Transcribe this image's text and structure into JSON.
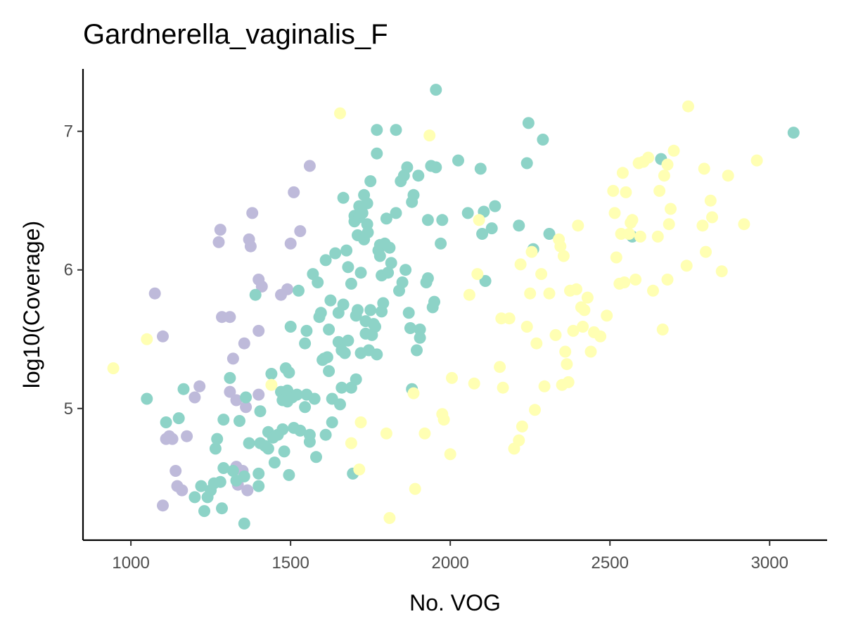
{
  "chart_data": {
    "type": "scatter",
    "title": "Gardnerella_vaginalis_F",
    "xlabel": "No. VOG",
    "ylabel": "log10(Coverage)",
    "xlim": [
      850,
      3180
    ],
    "ylim": [
      4.05,
      7.45
    ],
    "x_ticks": [
      1000,
      1500,
      2000,
      2500,
      3000
    ],
    "x_tick_labels": [
      "1000",
      "1500",
      "2000",
      "2500",
      "3000"
    ],
    "y_ticks": [
      5,
      6,
      7
    ],
    "y_tick_labels": [
      "5",
      "6",
      "7"
    ],
    "grid": false,
    "legend": "none",
    "series": [
      {
        "color": "#bebada",
        "points": [
          [
            1075,
            5.83
          ],
          [
            1100,
            5.52
          ],
          [
            1100,
            4.3
          ],
          [
            1110,
            4.78
          ],
          [
            1120,
            4.8
          ],
          [
            1130,
            4.78
          ],
          [
            1140,
            4.55
          ],
          [
            1145,
            4.44
          ],
          [
            1160,
            4.41
          ],
          [
            1175,
            4.8
          ],
          [
            1200,
            5.08
          ],
          [
            1215,
            5.16
          ],
          [
            1275,
            6.2
          ],
          [
            1280,
            6.29
          ],
          [
            1285,
            5.66
          ],
          [
            1310,
            5.66
          ],
          [
            1310,
            5.12
          ],
          [
            1320,
            5.36
          ],
          [
            1330,
            5.06
          ],
          [
            1330,
            4.58
          ],
          [
            1335,
            4.45
          ],
          [
            1350,
            4.55
          ],
          [
            1355,
            5.47
          ],
          [
            1360,
            5.01
          ],
          [
            1365,
            4.41
          ],
          [
            1370,
            6.22
          ],
          [
            1375,
            6.17
          ],
          [
            1380,
            6.41
          ],
          [
            1400,
            5.93
          ],
          [
            1400,
            5.56
          ],
          [
            1400,
            5.1
          ],
          [
            1410,
            5.88
          ],
          [
            1470,
            5.82
          ],
          [
            1490,
            5.86
          ],
          [
            1500,
            6.19
          ],
          [
            1510,
            6.56
          ],
          [
            1530,
            6.28
          ],
          [
            1560,
            6.75
          ]
        ]
      },
      {
        "color": "#8dd3c7",
        "points": [
          [
            1050,
            5.07
          ],
          [
            1110,
            4.9
          ],
          [
            1150,
            4.93
          ],
          [
            1165,
            5.14
          ],
          [
            1200,
            4.36
          ],
          [
            1220,
            4.44
          ],
          [
            1230,
            4.26
          ],
          [
            1240,
            4.36
          ],
          [
            1250,
            4.41
          ],
          [
            1260,
            4.46
          ],
          [
            1265,
            4.71
          ],
          [
            1270,
            4.78
          ],
          [
            1280,
            4.47
          ],
          [
            1285,
            4.28
          ],
          [
            1290,
            4.57
          ],
          [
            1290,
            4.92
          ],
          [
            1310,
            5.22
          ],
          [
            1320,
            4.55
          ],
          [
            1330,
            4.48
          ],
          [
            1340,
            4.91
          ],
          [
            1355,
            4.51
          ],
          [
            1355,
            4.17
          ],
          [
            1360,
            5.08
          ],
          [
            1370,
            4.75
          ],
          [
            1390,
            5.82
          ],
          [
            1400,
            4.44
          ],
          [
            1400,
            4.53
          ],
          [
            1405,
            4.75
          ],
          [
            1405,
            4.98
          ],
          [
            1420,
            4.73
          ],
          [
            1430,
            4.71
          ],
          [
            1430,
            4.83
          ],
          [
            1440,
            5.25
          ],
          [
            1445,
            4.79
          ],
          [
            1450,
            4.61
          ],
          [
            1460,
            4.81
          ],
          [
            1470,
            5.12
          ],
          [
            1475,
            5.06
          ],
          [
            1475,
            4.85
          ],
          [
            1480,
            4.69
          ],
          [
            1485,
            5.29
          ],
          [
            1490,
            5.05
          ],
          [
            1490,
            5.13
          ],
          [
            1495,
            5.26
          ],
          [
            1495,
            4.52
          ],
          [
            1500,
            5.59
          ],
          [
            1505,
            5.08
          ],
          [
            1510,
            4.86
          ],
          [
            1520,
            5.1
          ],
          [
            1525,
            5.85
          ],
          [
            1530,
            4.84
          ],
          [
            1545,
            5.01
          ],
          [
            1545,
            5.47
          ],
          [
            1550,
            5.56
          ],
          [
            1550,
            5.1
          ],
          [
            1560,
            4.76
          ],
          [
            1560,
            4.81
          ],
          [
            1570,
            5.97
          ],
          [
            1575,
            5.07
          ],
          [
            1580,
            4.65
          ],
          [
            1585,
            5.91
          ],
          [
            1590,
            5.66
          ],
          [
            1595,
            5.69
          ],
          [
            1600,
            5.35
          ],
          [
            1605,
            5.36
          ],
          [
            1610,
            4.81
          ],
          [
            1610,
            6.07
          ],
          [
            1615,
            5.37
          ],
          [
            1620,
            5.27
          ],
          [
            1620,
            5.57
          ],
          [
            1625,
            5.78
          ],
          [
            1630,
            4.9
          ],
          [
            1630,
            5.07
          ],
          [
            1640,
            6.12
          ],
          [
            1650,
            5.48
          ],
          [
            1650,
            5.69
          ],
          [
            1655,
            5.03
          ],
          [
            1660,
            5.15
          ],
          [
            1660,
            5.42
          ],
          [
            1665,
            5.75
          ],
          [
            1665,
            6.52
          ],
          [
            1670,
            5.4
          ],
          [
            1675,
            6.14
          ],
          [
            1680,
            6.02
          ],
          [
            1680,
            5.49
          ],
          [
            1690,
            5.9
          ],
          [
            1690,
            5.15
          ],
          [
            1695,
            4.53
          ],
          [
            1700,
            6.35
          ],
          [
            1700,
            6.39
          ],
          [
            1705,
            5.67
          ],
          [
            1705,
            5.21
          ],
          [
            1710,
            6.25
          ],
          [
            1710,
            5.71
          ],
          [
            1715,
            6.46
          ],
          [
            1715,
            6.38
          ],
          [
            1720,
            5.4
          ],
          [
            1720,
            5.98
          ],
          [
            1725,
            6.41
          ],
          [
            1730,
            6.22
          ],
          [
            1730,
            6.54
          ],
          [
            1735,
            5.54
          ],
          [
            1735,
            5.63
          ],
          [
            1740,
            6.48
          ],
          [
            1740,
            6.33
          ],
          [
            1742,
            6.27
          ],
          [
            1745,
            5.42
          ],
          [
            1750,
            5.71
          ],
          [
            1750,
            6.64
          ],
          [
            1755,
            5.53
          ],
          [
            1760,
            5.61
          ],
          [
            1765,
            5.59
          ],
          [
            1770,
            7.01
          ],
          [
            1770,
            6.84
          ],
          [
            1770,
            5.39
          ],
          [
            1775,
            6.14
          ],
          [
            1780,
            6.1
          ],
          [
            1780,
            6.18
          ],
          [
            1785,
            5.96
          ],
          [
            1785,
            5.7
          ],
          [
            1790,
            5.76
          ],
          [
            1795,
            6.19
          ],
          [
            1800,
            6.37
          ],
          [
            1805,
            5.98
          ],
          [
            1810,
            6.16
          ],
          [
            1815,
            6.05
          ],
          [
            1830,
            6.41
          ],
          [
            1830,
            7.01
          ],
          [
            1840,
            5.85
          ],
          [
            1845,
            6.64
          ],
          [
            1850,
            5.91
          ],
          [
            1855,
            6.68
          ],
          [
            1860,
            6.0
          ],
          [
            1865,
            6.74
          ],
          [
            1870,
            5.69
          ],
          [
            1875,
            5.58
          ],
          [
            1880,
            6.49
          ],
          [
            1880,
            5.14
          ],
          [
            1885,
            6.54
          ],
          [
            1895,
            5.42
          ],
          [
            1900,
            6.68
          ],
          [
            1905,
            5.51
          ],
          [
            1905,
            5.57
          ],
          [
            1925,
            5.91
          ],
          [
            1930,
            5.94
          ],
          [
            1930,
            6.36
          ],
          [
            1940,
            6.75
          ],
          [
            1945,
            5.73
          ],
          [
            1950,
            5.77
          ],
          [
            1955,
            6.74
          ],
          [
            1955,
            7.3
          ],
          [
            1970,
            6.19
          ],
          [
            1975,
            6.36
          ],
          [
            2025,
            6.79
          ],
          [
            2055,
            6.41
          ],
          [
            2095,
            6.73
          ],
          [
            2100,
            6.26
          ],
          [
            2105,
            6.42
          ],
          [
            2110,
            5.92
          ],
          [
            2130,
            6.3
          ],
          [
            2140,
            6.46
          ],
          [
            2215,
            6.32
          ],
          [
            2240,
            6.77
          ],
          [
            2245,
            7.06
          ],
          [
            2260,
            6.15
          ],
          [
            2290,
            6.94
          ],
          [
            2310,
            6.26
          ],
          [
            2570,
            6.24
          ],
          [
            2660,
            6.8
          ],
          [
            3075,
            6.99
          ]
        ]
      },
      {
        "color": "#ffffb3",
        "points": [
          [
            945,
            5.29
          ],
          [
            1050,
            5.5
          ],
          [
            1440,
            5.17
          ],
          [
            1655,
            7.13
          ],
          [
            1690,
            4.75
          ],
          [
            1715,
            4.56
          ],
          [
            1720,
            4.9
          ],
          [
            1800,
            4.82
          ],
          [
            1810,
            4.21
          ],
          [
            1885,
            5.11
          ],
          [
            1890,
            4.42
          ],
          [
            1920,
            4.82
          ],
          [
            1935,
            6.97
          ],
          [
            1975,
            4.96
          ],
          [
            1980,
            4.92
          ],
          [
            2000,
            4.67
          ],
          [
            2005,
            5.22
          ],
          [
            2060,
            5.82
          ],
          [
            2075,
            5.18
          ],
          [
            2085,
            5.97
          ],
          [
            2090,
            6.36
          ],
          [
            2155,
            5.3
          ],
          [
            2160,
            5.65
          ],
          [
            2165,
            5.15
          ],
          [
            2185,
            5.65
          ],
          [
            2200,
            4.71
          ],
          [
            2215,
            4.77
          ],
          [
            2220,
            6.04
          ],
          [
            2225,
            4.87
          ],
          [
            2240,
            5.59
          ],
          [
            2250,
            5.83
          ],
          [
            2255,
            6.13
          ],
          [
            2265,
            4.99
          ],
          [
            2270,
            5.47
          ],
          [
            2285,
            5.97
          ],
          [
            2295,
            5.16
          ],
          [
            2310,
            5.83
          ],
          [
            2330,
            5.53
          ],
          [
            2340,
            6.22
          ],
          [
            2345,
            6.17
          ],
          [
            2350,
            5.17
          ],
          [
            2355,
            6.1
          ],
          [
            2360,
            5.41
          ],
          [
            2365,
            5.32
          ],
          [
            2370,
            5.19
          ],
          [
            2375,
            5.85
          ],
          [
            2385,
            5.56
          ],
          [
            2395,
            5.86
          ],
          [
            2400,
            6.32
          ],
          [
            2410,
            5.73
          ],
          [
            2415,
            5.59
          ],
          [
            2420,
            5.71
          ],
          [
            2430,
            5.8
          ],
          [
            2440,
            5.41
          ],
          [
            2450,
            5.55
          ],
          [
            2470,
            5.52
          ],
          [
            2490,
            5.67
          ],
          [
            2510,
            6.57
          ],
          [
            2515,
            6.41
          ],
          [
            2520,
            6.09
          ],
          [
            2530,
            5.9
          ],
          [
            2535,
            6.26
          ],
          [
            2540,
            6.7
          ],
          [
            2545,
            5.91
          ],
          [
            2550,
            6.56
          ],
          [
            2560,
            6.26
          ],
          [
            2565,
            6.34
          ],
          [
            2570,
            6.36
          ],
          [
            2580,
            5.93
          ],
          [
            2590,
            6.77
          ],
          [
            2595,
            6.24
          ],
          [
            2605,
            6.78
          ],
          [
            2620,
            6.81
          ],
          [
            2635,
            5.85
          ],
          [
            2650,
            6.24
          ],
          [
            2655,
            6.57
          ],
          [
            2665,
            5.57
          ],
          [
            2670,
            6.68
          ],
          [
            2680,
            6.76
          ],
          [
            2685,
            6.33
          ],
          [
            2690,
            6.44
          ],
          [
            2700,
            6.86
          ],
          [
            2740,
            6.03
          ],
          [
            2745,
            7.18
          ],
          [
            2790,
            6.32
          ],
          [
            2795,
            6.73
          ],
          [
            2800,
            6.13
          ],
          [
            2815,
            6.5
          ],
          [
            2820,
            6.38
          ],
          [
            2850,
            5.99
          ],
          [
            2870,
            6.68
          ],
          [
            2920,
            6.33
          ],
          [
            2960,
            6.79
          ],
          [
            2680,
            5.93
          ]
        ]
      }
    ]
  }
}
